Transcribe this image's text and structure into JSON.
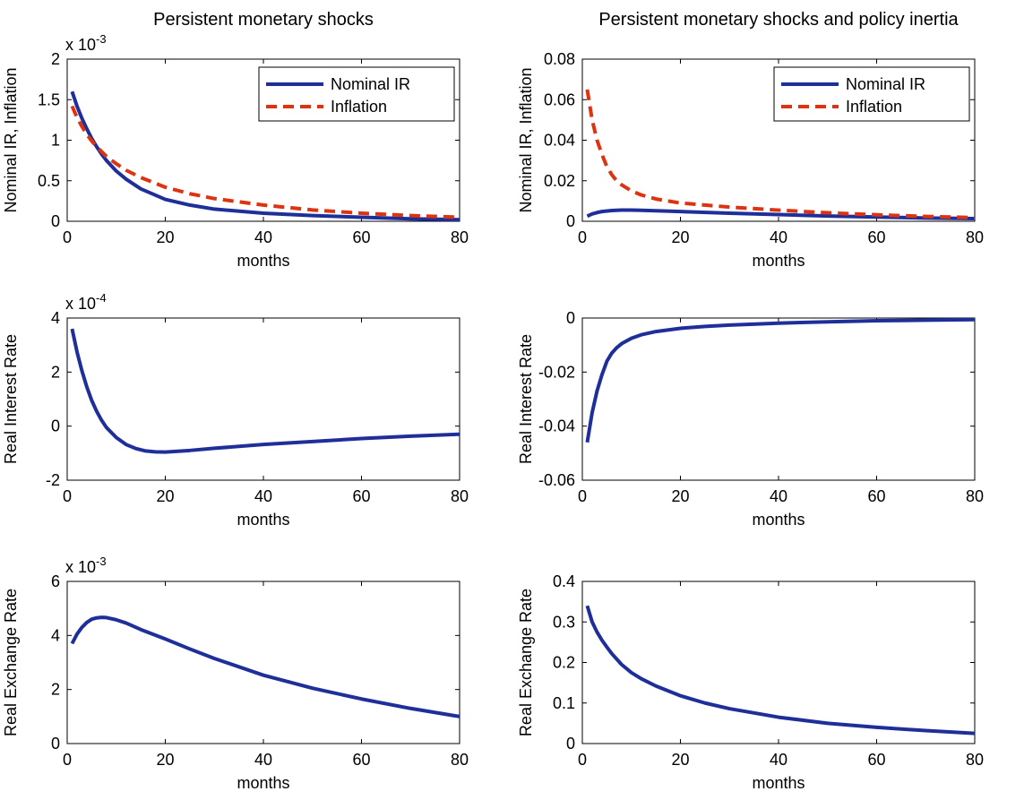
{
  "colors": {
    "blue": "#1F2F9A",
    "red": "#DD3311"
  },
  "chart_data": [
    {
      "type": "line",
      "title": "Persistent monetary shocks",
      "xlabel": "months",
      "ylabel": "Nominal IR, Inflation",
      "exponent": {
        "base": "x 10",
        "power": "-3"
      },
      "xlim": [
        0,
        80
      ],
      "ylim": [
        0,
        2
      ],
      "xticks": [
        0,
        20,
        40,
        60,
        80
      ],
      "xtick_labels": [
        "0",
        "20",
        "40",
        "60",
        "80"
      ],
      "yticks": [
        0,
        0.5,
        1,
        1.5,
        2
      ],
      "ytick_labels": [
        "0",
        "0.5",
        "1",
        "1.5",
        "2"
      ],
      "grid": false,
      "legend": "top-right",
      "series": [
        {
          "name": "Nominal IR",
          "style": "solid",
          "color": "blue",
          "x": [
            1,
            2,
            3,
            4,
            5,
            6,
            7,
            8,
            10,
            12,
            15,
            20,
            25,
            30,
            40,
            50,
            60,
            70,
            80
          ],
          "y": [
            1.6,
            1.42,
            1.27,
            1.14,
            1.02,
            0.92,
            0.83,
            0.75,
            0.62,
            0.52,
            0.4,
            0.27,
            0.2,
            0.15,
            0.1,
            0.07,
            0.05,
            0.03,
            0.02
          ]
        },
        {
          "name": "Inflation",
          "style": "dashed",
          "color": "red",
          "x": [
            1,
            2,
            3,
            4,
            5,
            6,
            8,
            10,
            12,
            15,
            20,
            25,
            30,
            40,
            50,
            60,
            70,
            80
          ],
          "y": [
            1.42,
            1.28,
            1.17,
            1.07,
            0.99,
            0.92,
            0.8,
            0.71,
            0.63,
            0.54,
            0.42,
            0.34,
            0.28,
            0.2,
            0.14,
            0.1,
            0.07,
            0.05
          ]
        }
      ]
    },
    {
      "type": "line",
      "title": "Persistent monetary shocks and policy inertia",
      "xlabel": "months",
      "ylabel": "Nominal IR, Inflation",
      "xlim": [
        0,
        80
      ],
      "ylim": [
        0,
        0.08
      ],
      "xticks": [
        0,
        20,
        40,
        60,
        80
      ],
      "xtick_labels": [
        "0",
        "20",
        "40",
        "60",
        "80"
      ],
      "yticks": [
        0,
        0.02,
        0.04,
        0.06,
        0.08
      ],
      "ytick_labels": [
        "0",
        "0.02",
        "0.04",
        "0.06",
        "0.08"
      ],
      "grid": false,
      "legend": "top-right",
      "series": [
        {
          "name": "Nominal IR",
          "style": "solid",
          "color": "blue",
          "x": [
            1,
            2,
            3,
            4,
            6,
            8,
            10,
            12,
            15,
            20,
            30,
            40,
            50,
            60,
            70,
            80
          ],
          "y": [
            0.0025,
            0.0036,
            0.0043,
            0.0048,
            0.0053,
            0.0055,
            0.0055,
            0.0054,
            0.0052,
            0.0048,
            0.004,
            0.0033,
            0.0026,
            0.0021,
            0.0016,
            0.0013
          ]
        },
        {
          "name": "Inflation",
          "style": "dashed",
          "color": "red",
          "x": [
            1,
            2,
            3,
            4,
            5,
            6,
            7,
            8,
            10,
            12,
            15,
            20,
            25,
            30,
            40,
            50,
            60,
            70,
            80
          ],
          "y": [
            0.065,
            0.05,
            0.04,
            0.033,
            0.027,
            0.023,
            0.02,
            0.018,
            0.015,
            0.013,
            0.011,
            0.009,
            0.008,
            0.007,
            0.0055,
            0.0042,
            0.0032,
            0.0024,
            0.0018
          ]
        }
      ]
    },
    {
      "type": "line",
      "title": "",
      "xlabel": "months",
      "ylabel": "Real Interest Rate",
      "exponent": {
        "base": "x 10",
        "power": "-4"
      },
      "xlim": [
        0,
        80
      ],
      "ylim": [
        -2,
        4
      ],
      "xticks": [
        0,
        20,
        40,
        60,
        80
      ],
      "xtick_labels": [
        "0",
        "20",
        "40",
        "60",
        "80"
      ],
      "yticks": [
        -2,
        0,
        2,
        4
      ],
      "ytick_labels": [
        "-2",
        "0",
        "2",
        "4"
      ],
      "grid": false,
      "series": [
        {
          "style": "solid",
          "color": "blue",
          "x": [
            1,
            2,
            3,
            4,
            5,
            6,
            7,
            8,
            10,
            12,
            14,
            16,
            18,
            20,
            25,
            30,
            40,
            50,
            60,
            70,
            80
          ],
          "y": [
            3.6,
            2.75,
            2.05,
            1.45,
            0.95,
            0.55,
            0.22,
            -0.05,
            -0.42,
            -0.68,
            -0.83,
            -0.92,
            -0.95,
            -0.96,
            -0.9,
            -0.82,
            -0.68,
            -0.57,
            -0.46,
            -0.37,
            -0.3
          ]
        }
      ]
    },
    {
      "type": "line",
      "title": "",
      "xlabel": "months",
      "ylabel": "Real Interest Rate",
      "xlim": [
        0,
        80
      ],
      "ylim": [
        -0.06,
        0
      ],
      "xticks": [
        0,
        20,
        40,
        60,
        80
      ],
      "xtick_labels": [
        "0",
        "20",
        "40",
        "60",
        "80"
      ],
      "yticks": [
        -0.06,
        -0.04,
        -0.02,
        0
      ],
      "ytick_labels": [
        "-0.06",
        "-0.04",
        "-0.02",
        "0"
      ],
      "grid": false,
      "series": [
        {
          "style": "solid",
          "color": "blue",
          "x": [
            1,
            2,
            3,
            4,
            5,
            6,
            7,
            8,
            10,
            12,
            15,
            20,
            25,
            30,
            40,
            50,
            60,
            70,
            80
          ],
          "y": [
            -0.046,
            -0.035,
            -0.027,
            -0.021,
            -0.016,
            -0.013,
            -0.011,
            -0.0095,
            -0.0075,
            -0.0062,
            -0.005,
            -0.0038,
            -0.0031,
            -0.0026,
            -0.0019,
            -0.0014,
            -0.001,
            -0.0008,
            -0.0006
          ]
        }
      ]
    },
    {
      "type": "line",
      "title": "",
      "xlabel": "months",
      "ylabel": "Real Exchange Rate",
      "exponent": {
        "base": "x 10",
        "power": "-3"
      },
      "xlim": [
        0,
        80
      ],
      "ylim": [
        0,
        6
      ],
      "xticks": [
        0,
        20,
        40,
        60,
        80
      ],
      "xtick_labels": [
        "0",
        "20",
        "40",
        "60",
        "80"
      ],
      "yticks": [
        0,
        2,
        4,
        6
      ],
      "ytick_labels": [
        "0",
        "2",
        "4",
        "6"
      ],
      "grid": false,
      "series": [
        {
          "style": "solid",
          "color": "blue",
          "x": [
            1,
            2,
            3,
            4,
            5,
            6,
            7,
            8,
            10,
            12,
            15,
            20,
            25,
            30,
            40,
            50,
            60,
            70,
            80
          ],
          "y": [
            3.7,
            4.05,
            4.3,
            4.48,
            4.6,
            4.65,
            4.67,
            4.66,
            4.58,
            4.46,
            4.22,
            3.87,
            3.5,
            3.15,
            2.53,
            2.05,
            1.65,
            1.3,
            1.0
          ]
        }
      ]
    },
    {
      "type": "line",
      "title": "",
      "xlabel": "months",
      "ylabel": "Real Exchange Rate",
      "xlim": [
        0,
        80
      ],
      "ylim": [
        0,
        0.4
      ],
      "xticks": [
        0,
        20,
        40,
        60,
        80
      ],
      "xtick_labels": [
        "0",
        "20",
        "40",
        "60",
        "80"
      ],
      "yticks": [
        0,
        0.1,
        0.2,
        0.3,
        0.4
      ],
      "ytick_labels": [
        "0",
        "0.1",
        "0.2",
        "0.3",
        "0.4"
      ],
      "grid": false,
      "series": [
        {
          "style": "solid",
          "color": "blue",
          "x": [
            1,
            2,
            3,
            4,
            5,
            6,
            8,
            10,
            12,
            15,
            20,
            25,
            30,
            40,
            50,
            60,
            70,
            80
          ],
          "y": [
            0.34,
            0.3,
            0.275,
            0.255,
            0.238,
            0.222,
            0.195,
            0.175,
            0.16,
            0.142,
            0.118,
            0.1,
            0.086,
            0.065,
            0.05,
            0.04,
            0.032,
            0.025
          ]
        }
      ]
    }
  ]
}
